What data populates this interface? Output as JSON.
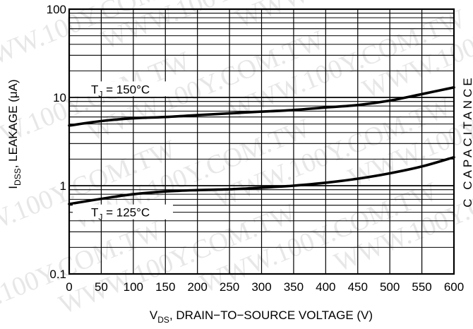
{
  "chart_data": {
    "type": "line",
    "xlabel_main": "V",
    "xlabel_sub": "DS",
    "xlabel_rest": ", DRAIN−TO−SOURCE VOLTAGE (V)",
    "ylabel_main": "I",
    "ylabel_sub": "DSS",
    "ylabel_rest": ", LEAKAGE (μA)",
    "xlim": [
      0,
      600
    ],
    "ylim": [
      0.1,
      100
    ],
    "y_scale": "log",
    "grid": true,
    "x_ticks": [
      "0",
      "50",
      "100",
      "150",
      "200",
      "250",
      "300",
      "350",
      "400",
      "450",
      "500",
      "550",
      "600"
    ],
    "y_ticks": [
      "0.1",
      "1",
      "10",
      "100"
    ],
    "series": [
      {
        "label_main": "T",
        "label_sub": "J",
        "label_rest": " = 150°C",
        "x": [
          0,
          50,
          100,
          150,
          200,
          250,
          300,
          350,
          400,
          450,
          500,
          550,
          600
        ],
        "y": [
          4.8,
          5.4,
          5.8,
          6.0,
          6.3,
          6.6,
          6.9,
          7.2,
          7.7,
          8.2,
          9.2,
          10.9,
          13.0
        ]
      },
      {
        "label_main": "T",
        "label_sub": "J",
        "label_rest": " = 125°C",
        "x": [
          0,
          50,
          100,
          150,
          200,
          250,
          300,
          350,
          400,
          450,
          500,
          550,
          600
        ],
        "y": [
          0.62,
          0.71,
          0.8,
          0.86,
          0.89,
          0.91,
          0.95,
          1.0,
          1.08,
          1.2,
          1.38,
          1.65,
          2.1
        ]
      }
    ],
    "cropped_right_label": "C CAPACITANCE"
  },
  "watermark_text": "WWW.100Y.COM.TW"
}
